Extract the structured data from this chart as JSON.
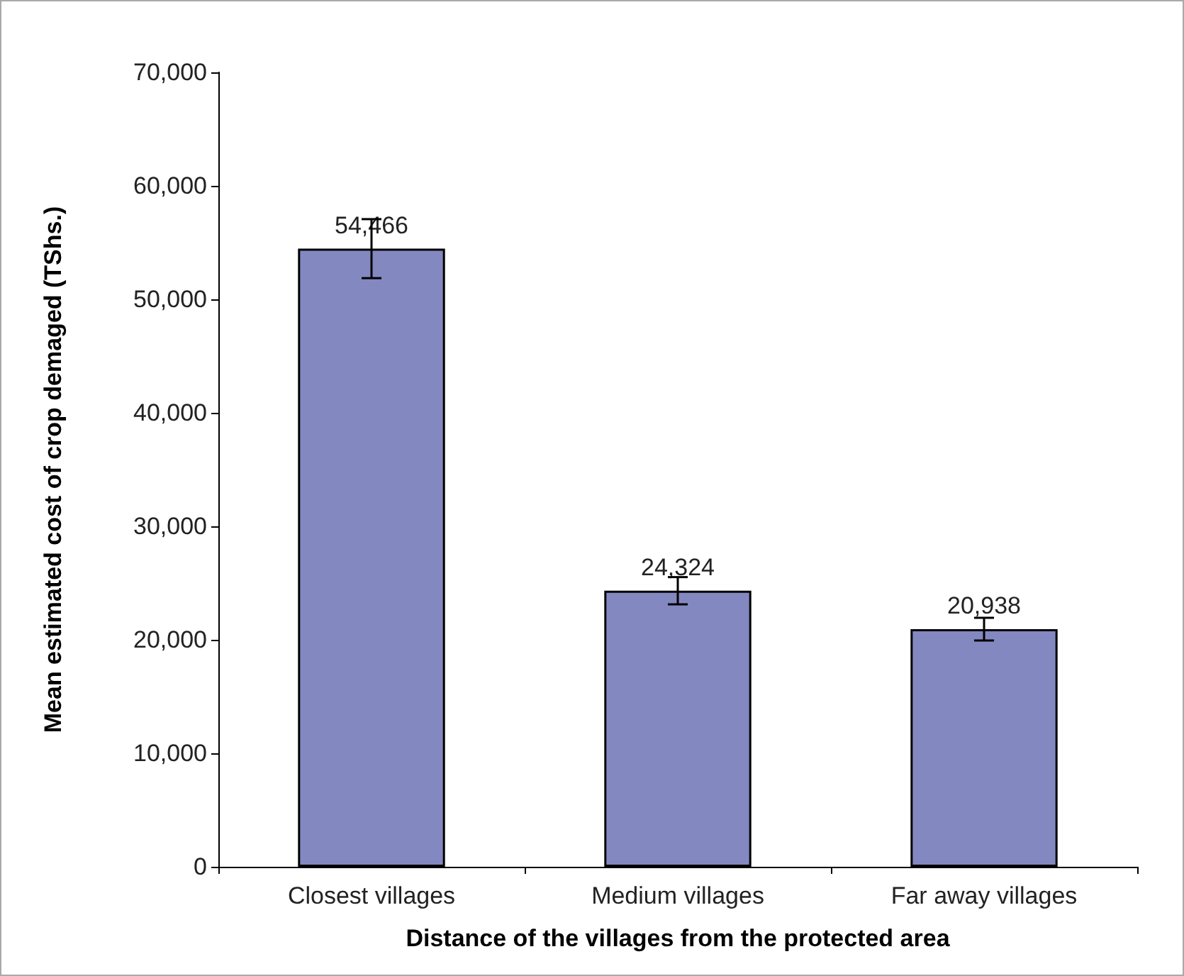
{
  "chart_data": {
    "type": "bar",
    "xlabel": "Distance of the villages from the protected area",
    "ylabel": "Mean estimated cost of crop demaged (TShs.)",
    "categories": [
      "Closest villages",
      "Medium villages",
      "Far away villages"
    ],
    "values": [
      54466,
      24324,
      20938
    ],
    "value_labels": [
      "54,466",
      "24,324",
      "20,938"
    ],
    "errors": [
      2600,
      1200,
      1000
    ],
    "color": "#8488c0",
    "ylim": [
      0,
      70000
    ],
    "yticks": [
      0,
      {
        "value": 10000,
        "label": "10,000"
      },
      {
        "value": 20000,
        "label": "20,000"
      },
      {
        "value": 30000,
        "label": "30,000"
      },
      {
        "value": 40000,
        "label": "40,000"
      },
      {
        "value": 50000,
        "label": "50,000"
      },
      {
        "value": 60000,
        "label": "60,000"
      },
      {
        "value": 70000,
        "label": "70,000"
      }
    ],
    "grid": false
  }
}
